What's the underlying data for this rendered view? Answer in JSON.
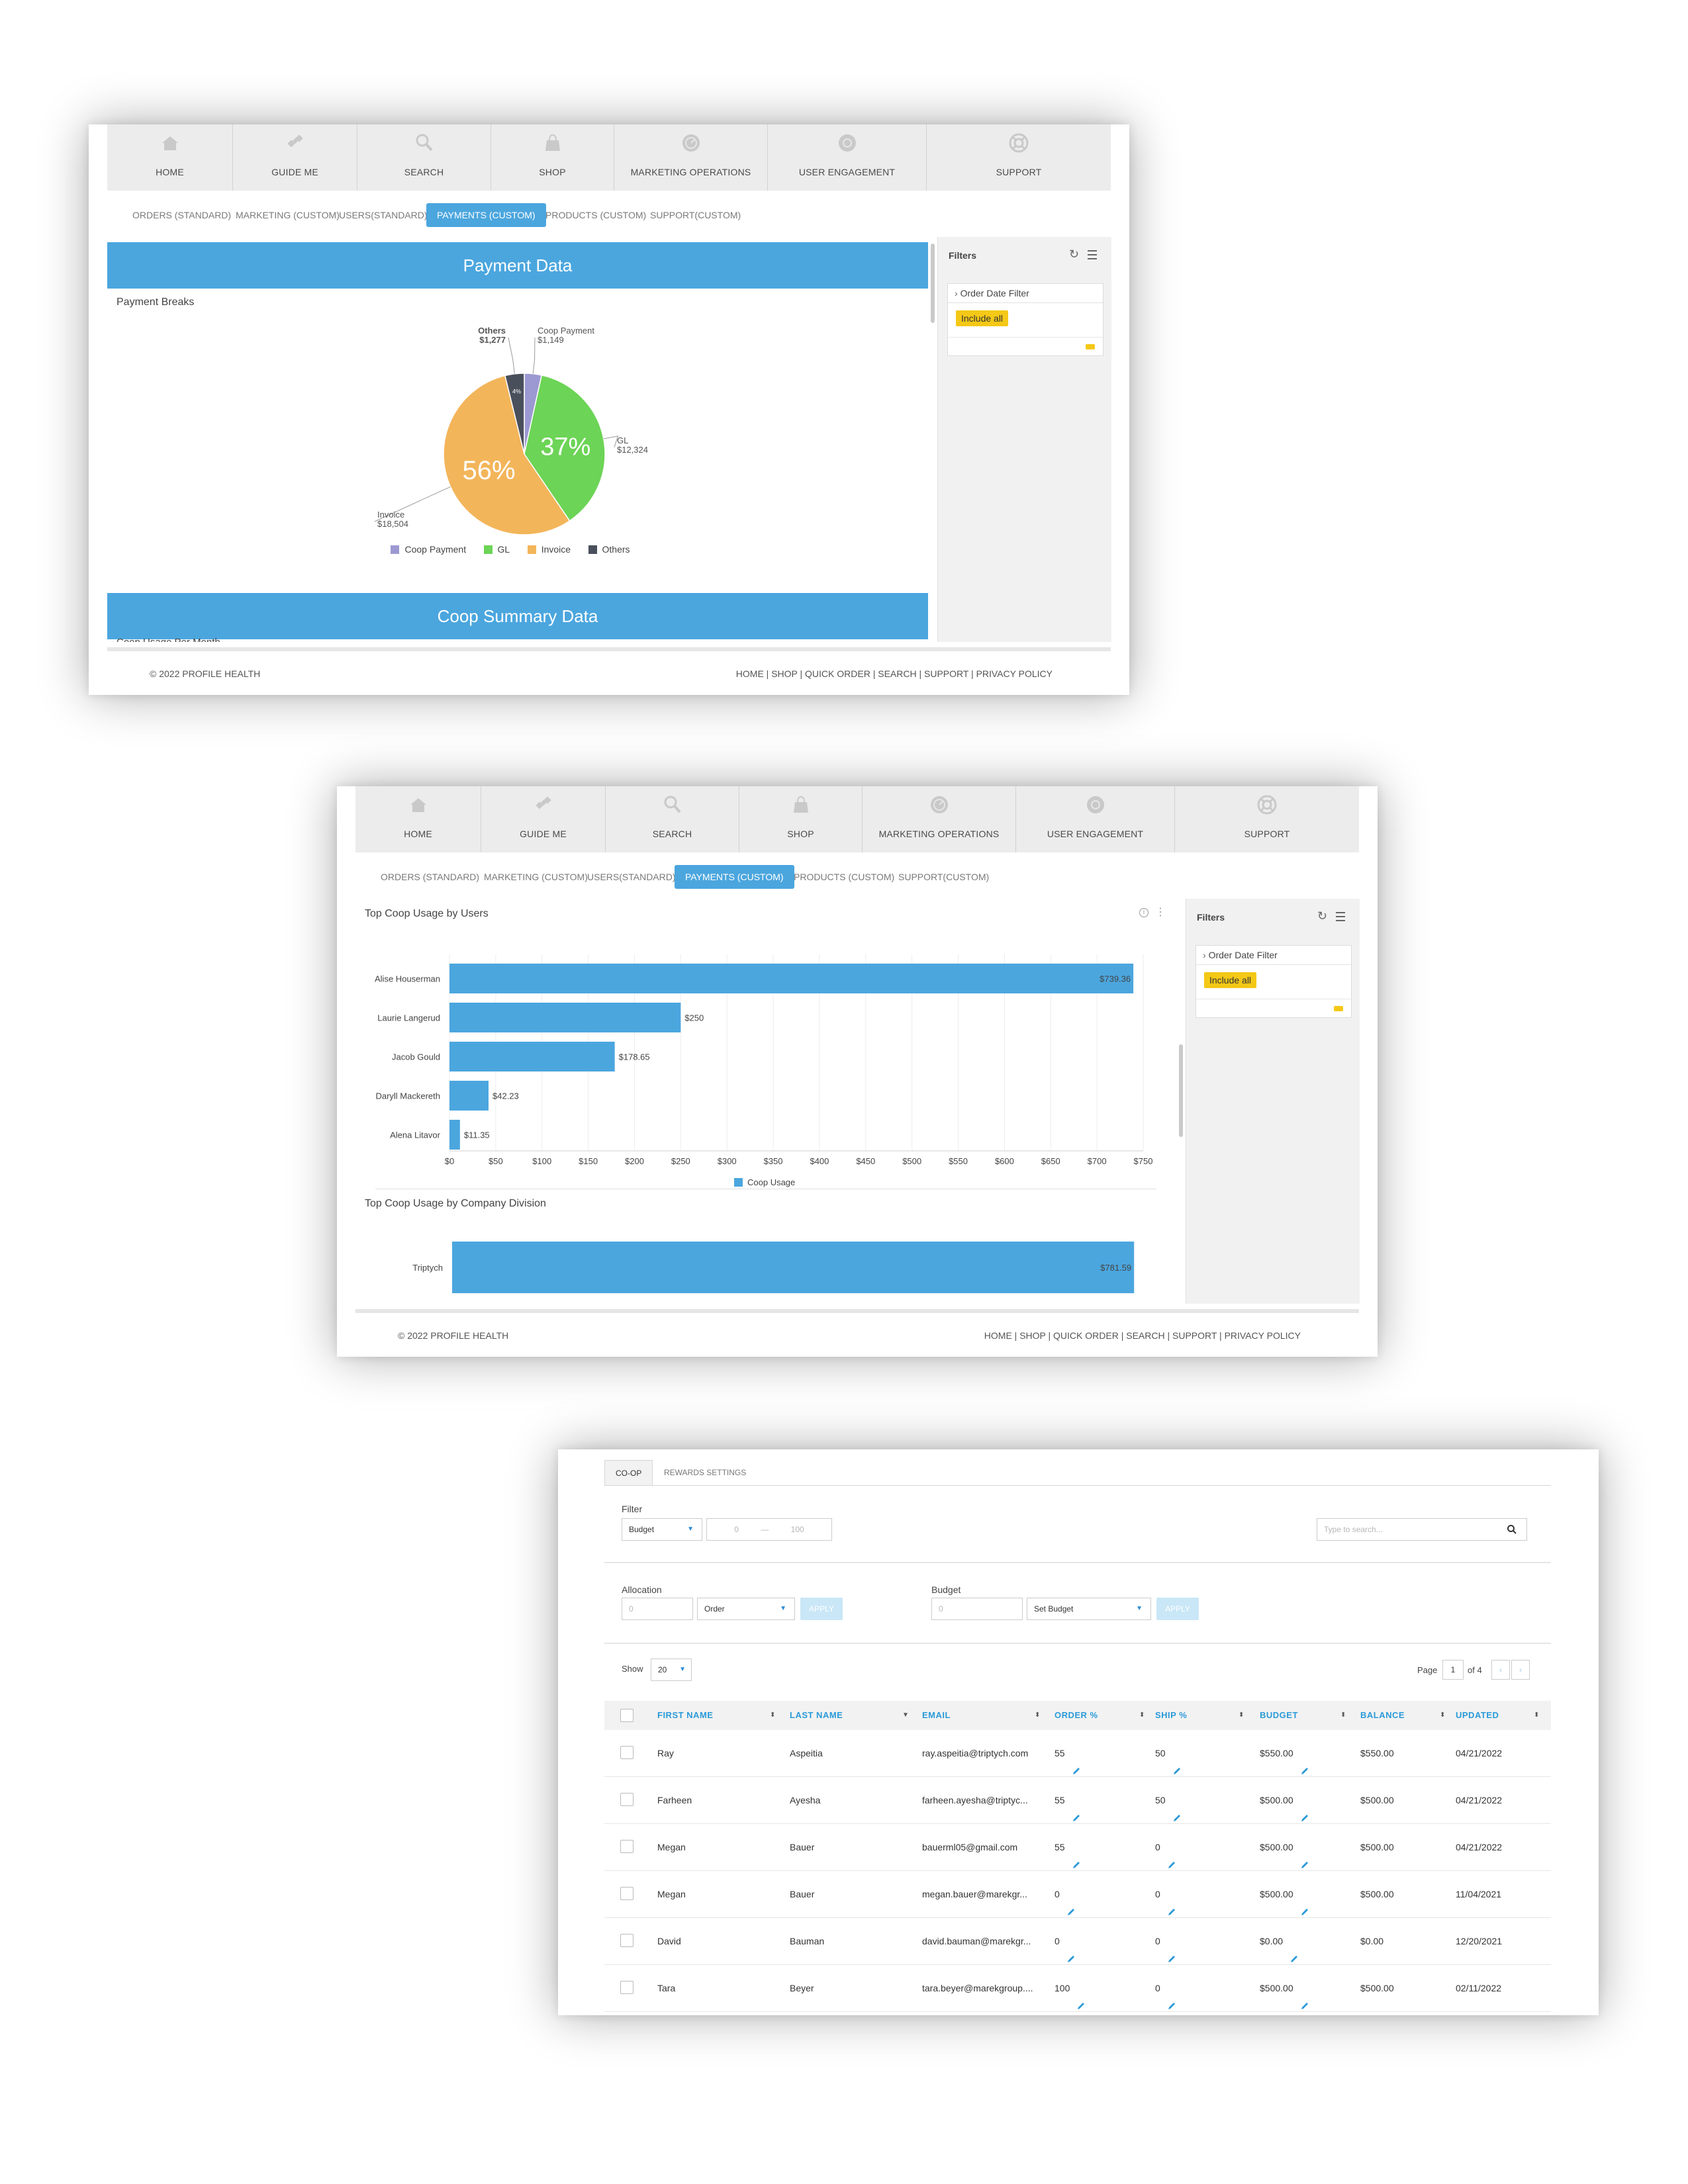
{
  "nav": [
    "HOME",
    "GUIDE ME",
    "SEARCH",
    "SHOP",
    "MARKETING OPERATIONS",
    "USER ENGAGEMENT",
    "SUPPORT"
  ],
  "subtabs": [
    "ORDERS (STANDARD)",
    "MARKETING (CUSTOM)",
    "USERS(STANDARD)",
    "PAYMENTS (CUSTOM)",
    "PRODUCTS (CUSTOM)",
    "SUPPORT(CUSTOM)"
  ],
  "active_subtab": "PAYMENTS (CUSTOM)",
  "filters": {
    "title": "Filters",
    "order_date_filter": "Order Date Filter",
    "include_all": "Include all"
  },
  "footer": {
    "copyright": "© 2022 PROFILE HEALTH",
    "links": "HOME | SHOP | QUICK ORDER | SEARCH | SUPPORT | PRIVACY POLICY"
  },
  "panel1": {
    "band_title": "Payment Data",
    "chart_title": "Payment Breaks",
    "band2_title": "Coop Summary Data",
    "cut_label": "Coop Usage Per Month",
    "pie_percent_labels": {
      "gl": "37%",
      "invoice": "56%",
      "others": "4%"
    }
  },
  "panel2": {
    "chart1_title": "Top Coop Usage by Users",
    "chart2_title": "Top Coop Usage by Company Division"
  },
  "panel3": {
    "tabs": [
      "CO-OP",
      "REWARDS SETTINGS"
    ],
    "filter_label": "Filter",
    "filter_select": "Budget",
    "range_min": "0",
    "range_sep": "—",
    "range_max": "100",
    "search_placeholder": "Type to search...",
    "allocation_label": "Allocation",
    "allocation_value": "0",
    "allocation_select": "Order",
    "budget_label": "Budget",
    "budget_value": "0",
    "budget_select": "Set Budget",
    "apply_label": "APPLY",
    "show_label": "Show",
    "show_value": "20",
    "page_label": "Page",
    "page_value": "1",
    "page_of": "of 4",
    "columns": [
      "FIRST NAME",
      "LAST NAME",
      "EMAIL",
      "ORDER %",
      "SHIP %",
      "BUDGET",
      "BALANCE",
      "UPDATED"
    ],
    "rows": [
      [
        "Ray",
        "Aspeitia",
        "ray.aspeitia@triptych.com",
        "55",
        "50",
        "$550.00",
        "$550.00",
        "04/21/2022"
      ],
      [
        "Farheen",
        "Ayesha",
        "farheen.ayesha@triptyc...",
        "55",
        "50",
        "$500.00",
        "$500.00",
        "04/21/2022"
      ],
      [
        "Megan",
        "Bauer",
        "bauerml05@gmail.com",
        "55",
        "0",
        "$500.00",
        "$500.00",
        "04/21/2022"
      ],
      [
        "Megan",
        "Bauer",
        "megan.bauer@marekgr...",
        "0",
        "0",
        "$500.00",
        "$500.00",
        "11/04/2021"
      ],
      [
        "David",
        "Bauman",
        "david.bauman@marekgr...",
        "0",
        "0",
        "$0.00",
        "$0.00",
        "12/20/2021"
      ],
      [
        "Tara",
        "Beyer",
        "tara.beyer@marekgroup....",
        "100",
        "0",
        "$500.00",
        "$500.00",
        "02/11/2022"
      ]
    ]
  },
  "colors": {
    "accent": "#4ba6de",
    "coop_payment": "#9c99d2",
    "gl": "#6cd456",
    "invoice": "#f3b55a",
    "others": "#4a4f5c",
    "chip": "#f4c816"
  },
  "icons": [
    "home-icon",
    "guide-icon",
    "search-icon",
    "shop-icon",
    "marketing-icon",
    "engagement-icon",
    "support-icon"
  ],
  "chart_data": [
    {
      "type": "pie",
      "title": "Payment Breaks",
      "labels": [
        "Coop Payment",
        "GL",
        "Invoice",
        "Others"
      ],
      "values": [
        1149,
        12324,
        18504,
        1277
      ],
      "value_labels": [
        "$1,149",
        "$12,324",
        "$18,504",
        "$1,277"
      ],
      "legend": [
        "Coop Payment",
        "GL",
        "Invoice",
        "Others"
      ],
      "legend_position": "bottom"
    },
    {
      "type": "bar",
      "orientation": "horizontal",
      "title": "Top Coop Usage by Users",
      "categories": [
        "Alise Houserman",
        "Laurie Langerud",
        "Jacob Gould",
        "Daryll Mackereth",
        "Alena Litavor"
      ],
      "series": [
        {
          "name": "Coop Usage",
          "values": [
            739.36,
            250,
            178.65,
            42.23,
            11.35
          ]
        }
      ],
      "value_labels": [
        "$739.36",
        "$250",
        "$178.65",
        "$42.23",
        "$11.35"
      ],
      "xticks": [
        "$0",
        "$50",
        "$100",
        "$150",
        "$200",
        "$250",
        "$300",
        "$350",
        "$400",
        "$450",
        "$500",
        "$550",
        "$600",
        "$650",
        "$700",
        "$750"
      ],
      "xlim": [
        0,
        750
      ],
      "grid": true,
      "legend_position": "bottom"
    },
    {
      "type": "bar",
      "orientation": "horizontal",
      "title": "Top Coop Usage by Company Division",
      "categories": [
        "Triptych"
      ],
      "series": [
        {
          "name": "Coop Usage",
          "values": [
            781.59
          ]
        }
      ],
      "value_labels": [
        "$781.59"
      ]
    }
  ]
}
